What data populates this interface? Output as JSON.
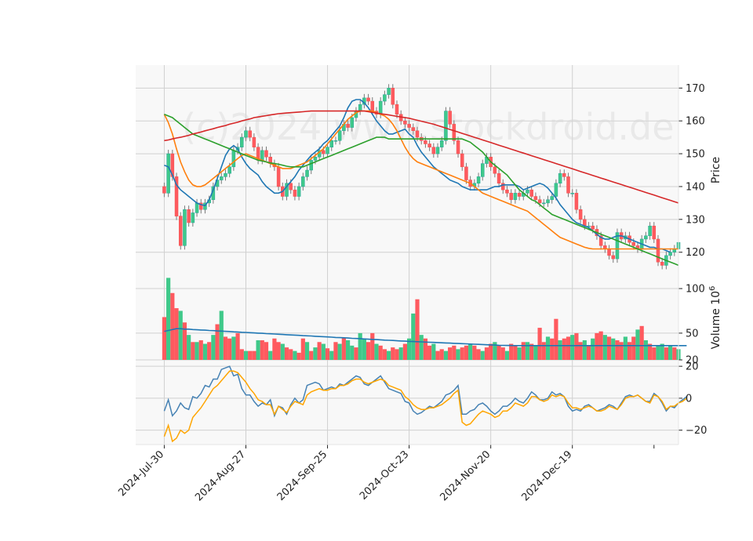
{
  "watermark": "(c)2024 www.stockdroid.de",
  "colors": {
    "up": "#26a69a",
    "up_fill": "#3fc98a",
    "down": "#ef5350",
    "down_fill": "#ff5a5f",
    "ma_blue": "#1f77b4",
    "ma_orange": "#ff7f0e",
    "ma_green": "#2ca02c",
    "ma_red": "#d62728",
    "macd_line": "#4682b4",
    "signal_line": "#ffa500",
    "panel_bg": "#f8f8f8",
    "grid": "#d0d0d0"
  },
  "chart_data": [
    {
      "type": "candlestick",
      "panel": "price",
      "ylabel": "Price",
      "ylim": [
        113,
        177
      ],
      "yticks": [
        120,
        130,
        140,
        150,
        160,
        170
      ],
      "x_tick_labels": [
        "2024-Jul-30",
        "2024-Aug-27",
        "2024-Sep-25",
        "2024-Oct-23",
        "2024-Nov-20",
        "2024-Dec-19"
      ],
      "x_tick_index": [
        0,
        20,
        40,
        60,
        80,
        100
      ],
      "x_range": [
        -7,
        126
      ],
      "close": [
        138,
        150,
        143,
        131,
        122,
        133,
        129,
        132,
        135,
        133,
        135,
        136,
        140,
        142,
        143,
        144,
        146,
        151,
        152,
        155,
        157,
        155,
        152,
        148,
        151,
        149,
        147,
        146,
        140,
        137,
        141,
        139,
        137,
        140,
        143,
        145,
        148,
        149,
        151,
        150,
        152,
        154,
        154,
        157,
        159,
        158,
        161,
        163,
        165,
        167,
        166,
        163,
        162,
        166,
        168,
        170,
        165,
        162,
        160,
        159,
        158,
        157,
        155,
        154,
        153,
        152,
        150,
        152,
        154,
        163,
        159,
        154,
        150,
        146,
        142,
        140,
        141,
        143,
        147,
        149,
        146,
        144,
        141,
        139,
        138,
        136,
        138,
        137,
        138,
        139,
        137,
        136,
        135,
        135,
        136,
        137,
        141,
        144,
        143,
        138,
        138,
        133,
        130,
        128,
        128,
        127,
        125,
        122,
        121,
        119,
        118,
        126,
        124,
        125,
        123,
        122,
        121,
        124,
        125,
        128,
        124,
        117,
        116,
        119,
        120,
        121,
        123
      ],
      "ma_blue": [
        146.5,
        146,
        143.5,
        140.5,
        139,
        138,
        137,
        136,
        135,
        134.5,
        134.2,
        136,
        139,
        142.5,
        146,
        149.5,
        151.5,
        152.5,
        151.5,
        149,
        147,
        145.5,
        144.5,
        143.5,
        141.5,
        140,
        139,
        138,
        138,
        138.5,
        140,
        141.5,
        143,
        145,
        146.5,
        148,
        149.5,
        150.5,
        151.5,
        153,
        154,
        155.5,
        157,
        158.5,
        161,
        164,
        166,
        166.5,
        166.5,
        165.5,
        164,
        162,
        160,
        158.5,
        157,
        156,
        156,
        156.5,
        157,
        157.5,
        156,
        155,
        152.5,
        150.5,
        149,
        147.5,
        146,
        145,
        144,
        143,
        142,
        141.5,
        141,
        140,
        139.5,
        139,
        139,
        139,
        139,
        139,
        139.5,
        140,
        140,
        140.5,
        140.5,
        140.5,
        140.5,
        140,
        139,
        139.5,
        140,
        140.5,
        141,
        140.5,
        139.5,
        138,
        136.5,
        134.5,
        133,
        131.5,
        130,
        129,
        128.5,
        128,
        127.5,
        126.5,
        125.5,
        124.5,
        124,
        124,
        124.5,
        125,
        125,
        124.5,
        124,
        123.5,
        123,
        122.5,
        122,
        121.5,
        121.5,
        121,
        121,
        120.5,
        120
      ],
      "ma_orange": [
        162,
        159.5,
        156,
        151.5,
        147.5,
        144.5,
        142,
        140.5,
        140,
        140,
        140.5,
        141.5,
        142.5,
        143.5,
        144.5,
        145.5,
        146.5,
        147.5,
        148.5,
        149.5,
        150,
        149.5,
        149,
        148.5,
        148,
        147.5,
        147,
        146.5,
        146,
        145.5,
        145.5,
        145.5,
        146,
        146.5,
        147,
        147.5,
        148.5,
        149.5,
        150.5,
        151.5,
        153,
        154.5,
        156,
        157.5,
        159,
        160.5,
        161.5,
        162.5,
        163,
        163,
        163,
        163,
        162.5,
        162,
        161.5,
        160.5,
        159,
        157,
        154.5,
        152,
        150,
        148.5,
        147.5,
        147,
        146.5,
        146,
        145.5,
        145,
        144.5,
        144,
        143.5,
        143,
        142.5,
        142,
        141.5,
        141,
        140,
        139,
        138,
        137.5,
        137,
        136.5,
        136,
        135.5,
        135,
        134.5,
        134,
        133.5,
        133,
        132.5,
        131.5,
        130.5,
        129.5,
        128.5,
        127.5,
        126.5,
        125.5,
        124.5,
        124,
        123.5,
        123,
        122.5,
        122,
        121.5,
        121.2,
        121,
        121,
        121,
        121,
        121,
        121,
        121,
        121,
        121,
        121,
        121,
        121,
        121,
        121,
        121,
        121,
        121,
        121,
        121,
        121,
        121,
        121
      ],
      "ma_green": [
        162,
        161.5,
        161,
        160,
        159,
        158,
        157,
        156,
        155.5,
        155,
        154.5,
        154,
        153.5,
        153,
        152.5,
        152,
        151.5,
        151,
        150.5,
        150,
        149.5,
        149,
        148.5,
        148,
        147.8,
        147.5,
        147.2,
        147,
        146.8,
        146.5,
        146.2,
        146,
        146,
        146,
        146,
        146.5,
        147,
        147.5,
        148,
        148.5,
        149,
        149.5,
        150,
        150.5,
        151,
        151.5,
        152,
        152.5,
        153,
        153.5,
        154,
        154.5,
        155,
        155,
        155,
        154.5,
        154.5,
        154.5,
        154.5,
        154.5,
        154.5,
        154.5,
        154.5,
        154.5,
        154.5,
        154.5,
        154.5,
        154.5,
        154.5,
        154.5,
        154.5,
        154.5,
        154.5,
        154.5,
        154,
        153.5,
        152.5,
        151.5,
        150.5,
        149,
        147.5,
        146.5,
        145.5,
        144.5,
        143.5,
        142,
        140.5,
        139,
        138,
        137,
        136,
        135.5,
        134.5,
        133.5,
        132.5,
        131.5,
        131,
        130.5,
        130,
        129.5,
        129,
        128.5,
        128,
        127.5,
        127,
        126.5,
        126,
        125.5,
        125,
        124.5,
        124,
        123.5,
        123,
        122.5,
        122,
        121.5,
        121,
        120.5,
        120,
        119.5,
        119,
        118.5,
        118,
        117.5,
        117,
        116.5,
        116
      ],
      "ma_red": [
        154,
        154.2,
        154.5,
        154.8,
        155,
        155.3,
        155.6,
        156,
        156.3,
        156.6,
        157,
        157.3,
        157.6,
        158,
        158.3,
        158.6,
        159,
        159.3,
        159.6,
        160,
        160.3,
        160.6,
        161,
        161.2,
        161.4,
        161.6,
        161.8,
        162,
        162.2,
        162.3,
        162.4,
        162.5,
        162.6,
        162.7,
        162.8,
        162.9,
        163,
        163,
        163,
        163,
        163,
        163,
        163,
        163,
        163,
        163,
        163,
        163,
        163,
        163,
        162.8,
        162.6,
        162.4,
        162.2,
        162,
        161.8,
        161.6,
        161.4,
        161.2,
        161,
        160.8,
        160.5,
        160.2,
        159.9,
        159.6,
        159.3,
        159,
        158.6,
        158.2,
        157.8,
        157.4,
        157,
        156.6,
        156.2,
        155.8,
        155.4,
        155,
        154.6,
        154.2,
        153.8,
        153.4,
        153,
        152.6,
        152.2,
        151.8,
        151.4,
        151,
        150.6,
        150.2,
        149.8,
        149.4,
        149,
        148.6,
        148.2,
        147.8,
        147.4,
        147,
        146.6,
        146.2,
        145.8,
        145.4,
        145,
        144.6,
        144.2,
        143.8,
        143.4,
        143,
        142.6,
        142.2,
        141.8,
        141.4,
        141,
        140.6,
        140.2,
        139.8,
        139.4,
        139,
        138.6,
        138.2,
        137.8,
        137.4,
        137,
        136.6,
        136.2,
        135.8,
        135.4,
        135
      ],
      "ma_series": [
        {
          "key": "ma_blue",
          "color": "#1f77b4"
        },
        {
          "key": "ma_orange",
          "color": "#ff7f0e"
        },
        {
          "key": "ma_green",
          "color": "#2ca02c"
        },
        {
          "key": "ma_red",
          "color": "#d62728"
        }
      ]
    },
    {
      "type": "bar",
      "panel": "volume",
      "ylabel": "Volume  10^6",
      "ylabel_main": "Volume",
      "ylabel_exp": "10",
      "ylabel_pow": "6",
      "ylim": [
        20,
        115
      ],
      "yticks": [
        20,
        50,
        100
      ],
      "values": [
        68,
        112,
        95,
        78,
        75,
        62,
        48,
        40,
        40,
        42,
        38,
        40,
        48,
        60,
        75,
        46,
        44,
        46,
        50,
        32,
        30,
        30,
        30,
        42,
        42,
        40,
        30,
        44,
        40,
        38,
        34,
        32,
        30,
        28,
        44,
        40,
        30,
        34,
        40,
        38,
        33,
        30,
        40,
        38,
        45,
        42,
        36,
        34,
        50,
        44,
        40,
        50,
        38,
        36,
        32,
        30,
        34,
        32,
        34,
        38,
        44,
        72,
        88,
        48,
        44,
        36,
        38,
        30,
        32,
        30,
        34,
        36,
        32,
        34,
        36,
        38,
        36,
        32,
        30,
        34,
        38,
        40,
        36,
        34,
        30,
        38,
        36,
        34,
        40,
        40,
        38,
        36,
        56,
        40,
        46,
        44,
        66,
        42,
        44,
        46,
        48,
        50,
        40,
        42,
        36,
        44,
        50,
        52,
        48,
        46,
        44,
        42,
        40,
        46,
        40,
        46,
        54,
        58,
        42,
        38,
        34,
        36,
        38,
        34,
        36,
        34,
        32
      ],
      "direction": [
        "d",
        "u",
        "d",
        "d",
        "u",
        "d",
        "u",
        "d",
        "u",
        "d",
        "u",
        "d",
        "u",
        "d",
        "u",
        "d",
        "d",
        "u",
        "d",
        "d",
        "u",
        "d",
        "d",
        "u",
        "d",
        "d",
        "u",
        "d",
        "d",
        "u",
        "d",
        "d",
        "u",
        "d",
        "d",
        "u",
        "d",
        "u",
        "d",
        "u",
        "d",
        "u",
        "d",
        "u",
        "d",
        "u",
        "u",
        "d",
        "u",
        "u",
        "d",
        "d",
        "u",
        "d",
        "d",
        "u",
        "d",
        "d",
        "u",
        "d",
        "u",
        "u",
        "d",
        "u",
        "d",
        "d",
        "u",
        "d",
        "d",
        "u",
        "d",
        "d",
        "u",
        "d",
        "d",
        "u",
        "d",
        "d",
        "u",
        "d",
        "d",
        "u",
        "d",
        "d",
        "u",
        "d",
        "d",
        "u",
        "d",
        "u",
        "d",
        "u",
        "d",
        "d",
        "u",
        "d",
        "d",
        "u",
        "d",
        "d",
        "u",
        "d",
        "d",
        "u",
        "d",
        "u",
        "d",
        "d",
        "u",
        "d",
        "u",
        "d",
        "d",
        "u",
        "d",
        "d",
        "u",
        "d",
        "u",
        "d",
        "d",
        "u",
        "u",
        "d",
        "u",
        "d",
        "u"
      ],
      "avg": [
        52,
        53,
        54,
        55,
        55,
        54.5,
        54.5,
        54,
        53.8,
        53.5,
        53.3,
        53,
        52.8,
        52.5,
        52.3,
        52,
        51.8,
        51.5,
        51.3,
        51,
        50.8,
        50.5,
        50.3,
        50,
        49.8,
        49.5,
        49.3,
        49,
        48.8,
        48.5,
        48.2,
        48,
        47.8,
        47.5,
        47.2,
        47,
        46.8,
        46.5,
        46.2,
        46,
        45.8,
        45.5,
        45.2,
        45,
        44.8,
        44.5,
        44.2,
        44,
        43.8,
        43.5,
        43.2,
        43,
        42.8,
        42.5,
        42.2,
        42,
        41.8,
        41.5,
        41.2,
        41,
        40.8,
        40.6,
        40.4,
        40.2,
        40,
        39.8,
        39.6,
        39.4,
        39.2,
        39,
        38.8,
        38.6,
        38.4,
        38.2,
        38,
        37.8,
        37.6,
        37.4,
        37.2,
        37,
        36.8,
        36.6,
        36.4,
        36.3,
        36.2,
        36.1,
        36,
        36,
        36,
        36,
        36,
        36,
        36,
        36,
        36,
        36,
        36,
        36,
        36,
        36,
        36,
        36,
        36,
        36,
        36,
        36,
        36,
        36,
        36,
        36,
        36,
        36,
        36,
        36,
        36,
        36,
        36,
        36,
        36,
        36,
        36,
        36,
        36,
        36,
        36,
        36,
        36,
        36,
        36
      ]
    },
    {
      "type": "line",
      "panel": "macd",
      "ylim": [
        -29,
        24
      ],
      "yticks": [
        -20,
        0,
        20
      ],
      "series": [
        {
          "key": "macd",
          "color": "#4682b4",
          "values": [
            -8,
            -1,
            -11,
            -8,
            -3,
            -6,
            -7,
            1,
            0,
            3,
            8,
            7,
            12,
            12,
            18,
            19,
            20,
            14,
            15,
            6,
            2,
            2,
            -2,
            -5,
            -3,
            -4,
            -1,
            -11,
            -5,
            -6,
            -10,
            -4,
            0,
            -3,
            -1,
            8,
            9,
            10,
            9,
            5,
            6,
            7,
            6,
            9,
            8,
            10,
            12,
            14,
            13,
            9,
            8,
            10,
            12,
            14,
            10,
            6,
            5,
            4,
            3,
            -2,
            -3,
            -8,
            -10,
            -9,
            -7,
            -5,
            -6,
            -4,
            -2,
            2,
            3,
            5,
            8,
            -10,
            -10,
            -8,
            -7,
            -4,
            -3,
            -5,
            -8,
            -10,
            -8,
            -5,
            -5,
            -3,
            0,
            -2,
            -3,
            0,
            4,
            2,
            -1,
            -1,
            0,
            4,
            2,
            3,
            1,
            -5,
            -8,
            -7,
            -8,
            -5,
            -4,
            -6,
            -8,
            -7,
            -6,
            -4,
            -5,
            -7,
            -3,
            1,
            2,
            1,
            2,
            0,
            -2,
            -2,
            3,
            1,
            -3,
            -8,
            -5,
            -6,
            -3,
            -1,
            1
          ]
        },
        {
          "key": "signal",
          "color": "#ffa500",
          "values": [
            -24,
            -17,
            -27,
            -25,
            -20,
            -22,
            -20,
            -12,
            -9,
            -6,
            -2,
            2,
            6,
            8,
            11,
            14,
            17,
            17,
            16,
            13,
            10,
            6,
            3,
            -1,
            -2,
            -4,
            -4,
            -10,
            -5,
            -7,
            -9,
            -5,
            -2,
            -3,
            -4,
            2,
            4,
            5,
            6,
            5,
            5,
            6,
            6,
            8,
            8,
            9,
            11,
            12,
            12,
            10,
            9,
            10,
            11,
            12,
            11,
            8,
            7,
            6,
            5,
            1,
            -1,
            -4,
            -6,
            -7,
            -7,
            -6,
            -6,
            -5,
            -4,
            -2,
            0,
            3,
            5,
            -15,
            -17,
            -16,
            -13,
            -10,
            -8,
            -9,
            -10,
            -12,
            -11,
            -8,
            -8,
            -6,
            -3,
            -4,
            -5,
            -3,
            1,
            1,
            -1,
            -2,
            -1,
            2,
            1,
            2,
            1,
            -3,
            -6,
            -6,
            -7,
            -6,
            -5,
            -6,
            -8,
            -8,
            -7,
            -5,
            -6,
            -7,
            -4,
            0,
            1,
            1,
            2,
            0,
            -2,
            -3,
            2,
            1,
            -2,
            -7,
            -5,
            -5,
            -3,
            -2,
            0
          ]
        }
      ]
    }
  ]
}
